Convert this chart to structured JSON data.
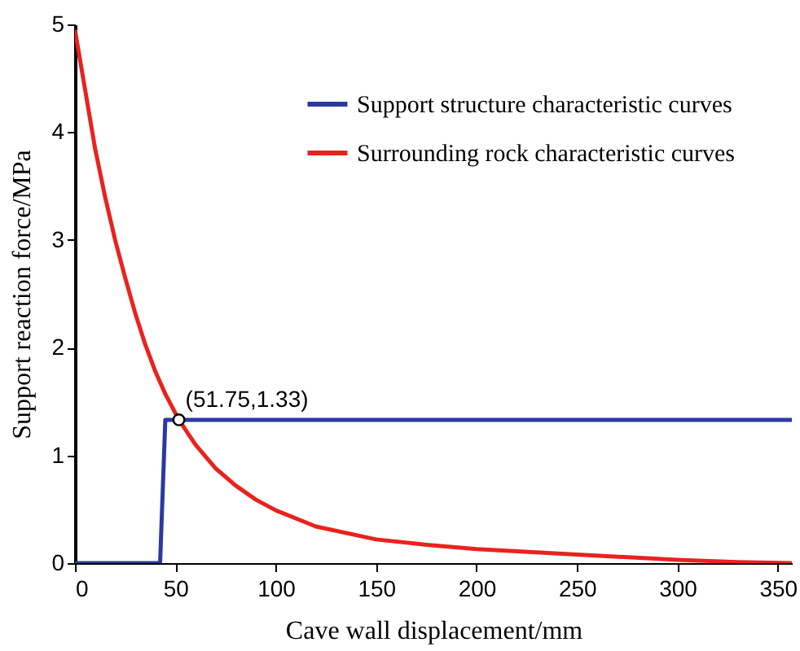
{
  "chart_data": {
    "type": "line",
    "xlabel": "Cave wall displacement/mm",
    "ylabel": "Support reaction force/MPa",
    "xlim": [
      0,
      357
    ],
    "ylim": [
      0,
      5
    ],
    "xticks": [
      0,
      50,
      100,
      150,
      200,
      250,
      300,
      350
    ],
    "yticks": [
      0,
      1,
      2,
      3,
      4,
      5
    ],
    "grid": false,
    "legend": "top right",
    "marker": "none",
    "line_style": "solid",
    "series": [
      {
        "name": "Support structure characteristic curves",
        "color": "#2b3aa0",
        "x": [
          0,
          42.4,
          45,
          51.75,
          357
        ],
        "values": [
          0,
          0,
          1.33,
          1.33,
          1.33
        ]
      },
      {
        "name": "Surrounding rock characteristic curves",
        "color": "#e8231e",
        "x": [
          0,
          5,
          10,
          15,
          20,
          25,
          30,
          35,
          40,
          45,
          51.75,
          60,
          70,
          80,
          90,
          100,
          120,
          150,
          175,
          200,
          250,
          300,
          330,
          357
        ],
        "values": [
          4.95,
          4.4,
          3.85,
          3.4,
          3.0,
          2.65,
          2.32,
          2.03,
          1.78,
          1.57,
          1.33,
          1.1,
          0.88,
          0.72,
          0.59,
          0.49,
          0.34,
          0.22,
          0.17,
          0.13,
          0.08,
          0.03,
          0.01,
          0
        ]
      }
    ],
    "annotations": [
      {
        "text": "(51.75,1.33)",
        "x": 51.75,
        "y": 1.33
      }
    ]
  }
}
